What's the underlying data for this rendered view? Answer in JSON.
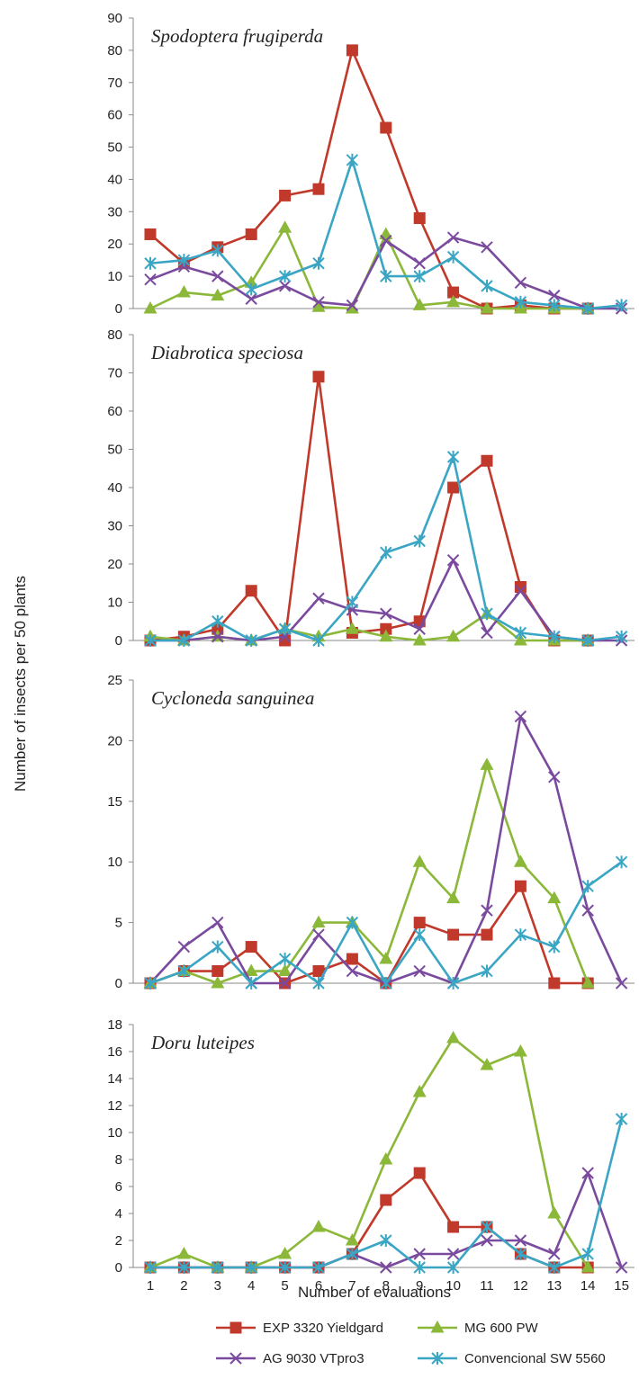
{
  "chart_data": {
    "type": "line",
    "layout": "four vertically stacked panels sharing the x axis",
    "ylabel": "Number of  insects per 50 plants",
    "xlabel": "Number of evaluations",
    "x": [
      1,
      2,
      3,
      4,
      5,
      6,
      7,
      8,
      9,
      10,
      11,
      12,
      13,
      14,
      15
    ],
    "legend": [
      {
        "name": "EXP 3320 Yieldgard",
        "color": "#c0392b",
        "marker": "square"
      },
      {
        "name": "MG 600 PW",
        "color": "#8cb83a",
        "marker": "triangle"
      },
      {
        "name": "AG 9030 VTpro3",
        "color": "#7a4a9e",
        "marker": "x"
      },
      {
        "name": "Convencional SW 5560",
        "color": "#3aa6c4",
        "marker": "star"
      }
    ],
    "panels": [
      {
        "title": "Spodoptera frugiperda",
        "ylim": [
          0,
          90
        ],
        "yticks": [
          0,
          10,
          20,
          30,
          40,
          50,
          60,
          70,
          80,
          90
        ],
        "series": [
          {
            "name": "EXP 3320 Yieldgard",
            "values": [
              23,
              14,
              19,
              23,
              35,
              37,
              80,
              56,
              28,
              5,
              0,
              1,
              0,
              0,
              null
            ]
          },
          {
            "name": "MG 600 PW",
            "values": [
              0,
              5,
              4,
              8,
              25,
              0.5,
              0,
              23,
              1,
              2,
              0,
              0,
              0,
              0,
              null
            ]
          },
          {
            "name": "AG 9030 VTpro3",
            "values": [
              9,
              13,
              10,
              3,
              7,
              2,
              1,
              21,
              14,
              22,
              19,
              8,
              4,
              0,
              0
            ]
          },
          {
            "name": "Convencional SW 5560",
            "values": [
              14,
              15,
              18,
              6,
              10,
              14,
              46,
              10,
              10,
              16,
              7,
              2,
              1,
              0,
              1
            ]
          }
        ]
      },
      {
        "title": "Diabrotica speciosa",
        "ylim": [
          0,
          80
        ],
        "yticks": [
          0,
          10,
          20,
          30,
          40,
          50,
          60,
          70,
          80
        ],
        "series": [
          {
            "name": "EXP 3320 Yieldgard",
            "values": [
              0,
              1,
              3,
              13,
              0,
              69,
              2,
              3,
              5,
              40,
              47,
              14,
              0,
              0,
              null
            ]
          },
          {
            "name": "MG 600 PW",
            "values": [
              1,
              0,
              1,
              0,
              3,
              1,
              3,
              1,
              0,
              1,
              7,
              0,
              0,
              0,
              null
            ]
          },
          {
            "name": "AG 9030 VTpro3",
            "values": [
              0,
              0,
              1,
              0,
              1,
              11,
              8,
              7,
              3,
              21,
              2,
              13,
              1,
              0,
              0
            ]
          },
          {
            "name": "Convencional SW 5560",
            "values": [
              0,
              0,
              5,
              0,
              3,
              0,
              10,
              23,
              26,
              48,
              7,
              2,
              1,
              0,
              1
            ]
          }
        ]
      },
      {
        "title": "Cycloneda sanguinea",
        "ylim": [
          0,
          25
        ],
        "yticks": [
          0,
          5,
          10,
          15,
          20,
          25
        ],
        "series": [
          {
            "name": "EXP 3320 Yieldgard",
            "values": [
              0,
              1,
              1,
              3,
              0,
              1,
              2,
              0,
              5,
              4,
              4,
              8,
              0,
              0,
              null
            ]
          },
          {
            "name": "MG 600 PW",
            "values": [
              0,
              1,
              0,
              1,
              1,
              5,
              5,
              2,
              10,
              7,
              18,
              10,
              7,
              0,
              null
            ]
          },
          {
            "name": "AG 9030 VTpro3",
            "values": [
              0,
              3,
              5,
              0,
              0,
              4,
              1,
              0,
              1,
              0,
              6,
              22,
              17,
              6,
              0
            ]
          },
          {
            "name": "Convencional SW 5560",
            "values": [
              0,
              1,
              3,
              0,
              2,
              0,
              5,
              0,
              4,
              0,
              1,
              4,
              3,
              8,
              10
            ]
          }
        ]
      },
      {
        "title": "Doru luteipes",
        "ylim": [
          0,
          18
        ],
        "yticks": [
          0,
          2,
          4,
          6,
          8,
          10,
          12,
          14,
          16,
          18
        ],
        "series": [
          {
            "name": "EXP 3320 Yieldgard",
            "values": [
              0,
              0,
              0,
              0,
              0,
              0,
              1,
              5,
              7,
              3,
              3,
              1,
              0,
              0,
              null
            ]
          },
          {
            "name": "MG 600 PW",
            "values": [
              0,
              1,
              0,
              0,
              1,
              3,
              2,
              8,
              13,
              17,
              15,
              16,
              4,
              0,
              null
            ]
          },
          {
            "name": "AG 9030 VTpro3",
            "values": [
              0,
              0,
              0,
              0,
              0,
              0,
              1,
              0,
              1,
              1,
              2,
              2,
              1,
              7,
              0
            ]
          },
          {
            "name": "Convencional SW 5560",
            "values": [
              0,
              0,
              0,
              0,
              0,
              0,
              1,
              2,
              0,
              0,
              3,
              1,
              0,
              1,
              11
            ]
          }
        ]
      }
    ]
  }
}
